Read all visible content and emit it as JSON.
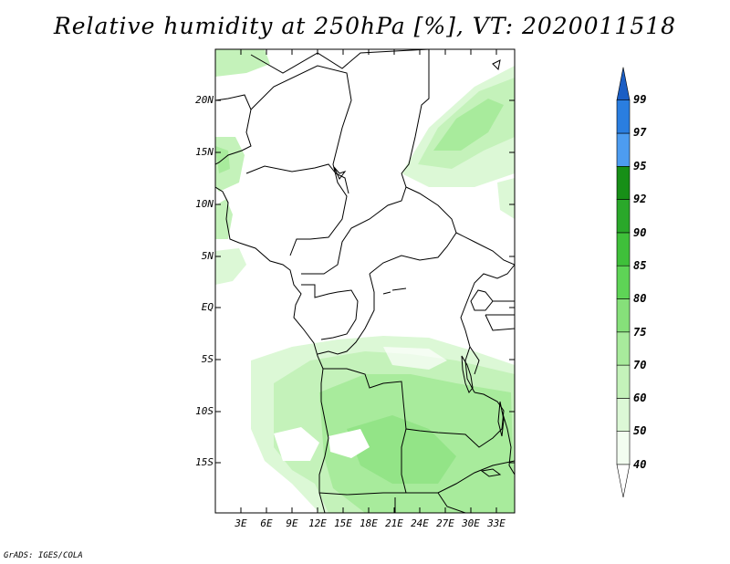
{
  "title": "Relative humidity at 250hPa [%], VT: 2020011518",
  "footer": "GrADS: IGES/COLA",
  "lat_labels": [
    "20N",
    "15N",
    "10N",
    "5N",
    "EQ",
    "5S",
    "10S",
    "15S"
  ],
  "lon_labels": [
    "3E",
    "6E",
    "9E",
    "12E",
    "15E",
    "18E",
    "21E",
    "24E",
    "27E",
    "30E",
    "33E"
  ],
  "colorbar": {
    "levels": [
      "40",
      "50",
      "60",
      "70",
      "75",
      "80",
      "85",
      "90",
      "92",
      "95",
      "97",
      "99"
    ],
    "colors": [
      "#f2fdf0",
      "#dcf8d6",
      "#c4f2ba",
      "#a8eb9c",
      "#86e07a",
      "#5ed456",
      "#3fc03a",
      "#2aa82a",
      "#178f17",
      "#4d9cf0",
      "#2a7ee0",
      "#1b5ec4"
    ],
    "bottom_color": "#ffffff",
    "top_color": "#1b5ec4"
  }
}
